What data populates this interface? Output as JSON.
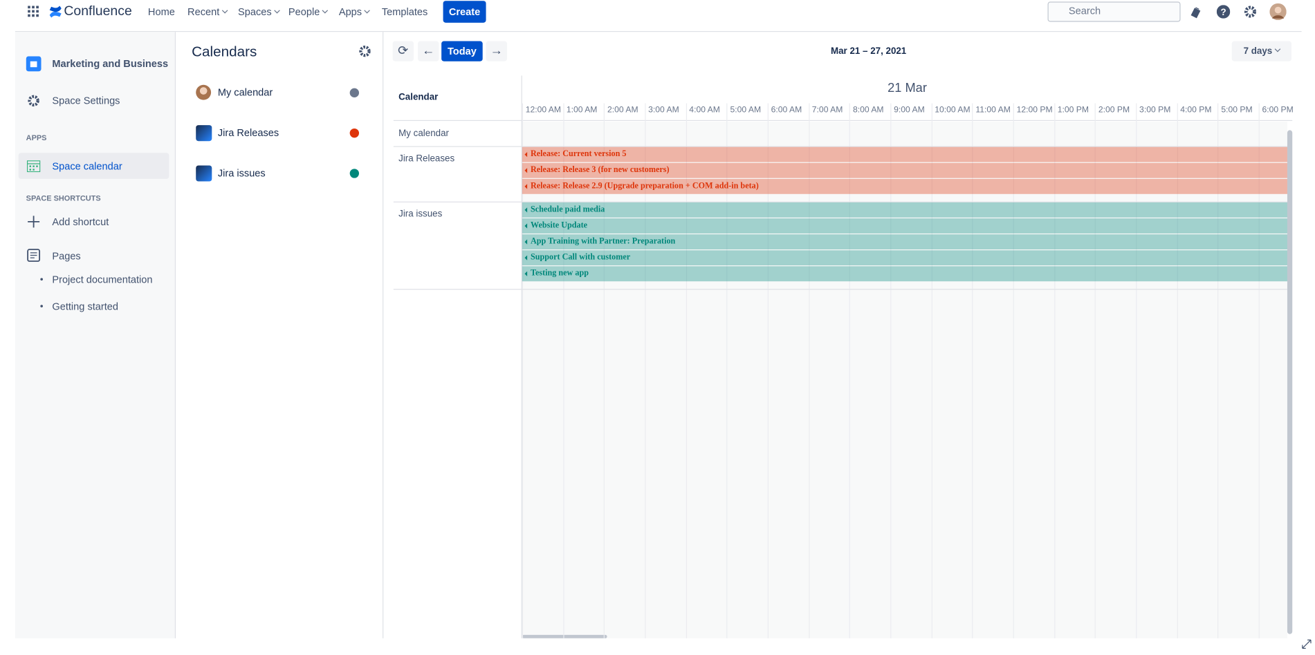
{
  "nav": {
    "product": "Confluence",
    "items": [
      "Home",
      "Recent",
      "Spaces",
      "People",
      "Apps",
      "Templates"
    ],
    "create": "Create",
    "search": "Search"
  },
  "sidebar": {
    "space": "Marketing and Business",
    "settings": "Space Settings",
    "apps_heading": "APPS",
    "app": "Space calendar",
    "shortcuts_heading": "SPACE SHORTCUTS",
    "add_shortcut": "Add shortcut",
    "pages_heading": "Pages",
    "pages": [
      "Project documentation",
      "Getting started"
    ]
  },
  "calendars": {
    "title": "Calendars",
    "items": [
      {
        "name": "My calendar",
        "color": "#6b778c"
      },
      {
        "name": "Jira Releases",
        "color": "#de350b"
      },
      {
        "name": "Jira issues",
        "color": "#00877a"
      }
    ]
  },
  "toolbar": {
    "today": "Today",
    "range": "Mar 21 – 27, 2021",
    "view": "7 days"
  },
  "timeline": {
    "column_header": "Calendar",
    "day": "21 Mar",
    "hours": [
      "12:00 AM",
      "1:00 AM",
      "2:00 AM",
      "3:00 AM",
      "4:00 AM",
      "5:00 AM",
      "6:00 AM",
      "7:00 AM",
      "8:00 AM",
      "9:00 AM",
      "10:00 AM",
      "11:00 AM",
      "12:00 PM",
      "1:00 PM",
      "2:00 PM",
      "3:00 PM",
      "4:00 PM",
      "5:00 PM",
      "6:00 PM"
    ],
    "rows": [
      {
        "calendar": "My calendar",
        "events": []
      },
      {
        "calendar": "Jira Releases",
        "events": [
          "Release: Current version 5",
          "Release: Release 3 (for new customers)",
          "Release: Release 2.9 (Upgrade preparation + COM add-in beta)"
        ]
      },
      {
        "calendar": "Jira issues",
        "events": [
          "Schedule paid media",
          "Website Update",
          "App Training with Partner: Preparation",
          "Support Call with customer",
          "Testing new app"
        ]
      }
    ]
  }
}
